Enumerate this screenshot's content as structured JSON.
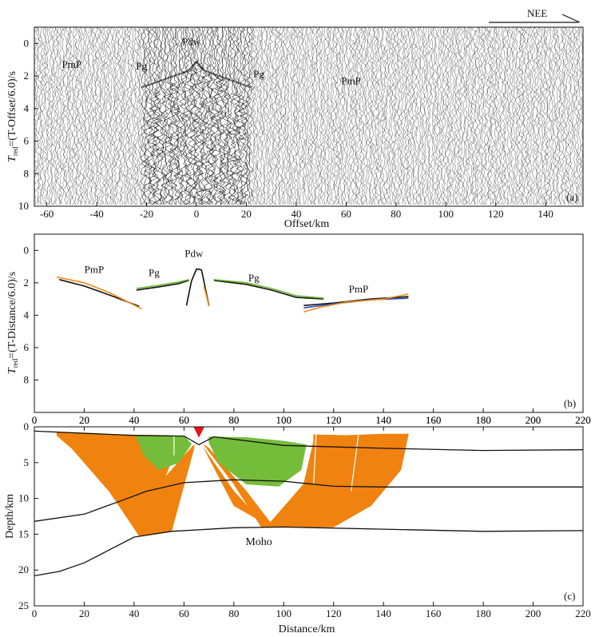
{
  "direction_label": "NEE",
  "chart_data": [
    {
      "id": "a",
      "type": "seismic_record_section",
      "panel_label": "(a)",
      "xlabel": "Offset/km",
      "ylabel_main": "T",
      "ylabel_sub": "red",
      "ylabel_rest": "=(T-Offset/6.0)/s",
      "xlim": [
        -65,
        155
      ],
      "ylim": [
        -1,
        10
      ],
      "xticks": [
        -60,
        -40,
        -20,
        0,
        20,
        40,
        60,
        80,
        100,
        120,
        140
      ],
      "yticks": [
        0,
        2,
        4,
        6,
        8,
        10
      ],
      "phase_labels": [
        {
          "text": "PmP",
          "x": -50,
          "t": 1.5
        },
        {
          "text": "Pg",
          "x": -22,
          "t": 1.6
        },
        {
          "text": "Pdw",
          "x": -2,
          "t": 0.1
        },
        {
          "text": "Pg",
          "x": 25,
          "t": 2.1
        },
        {
          "text": "PmP",
          "x": 62,
          "t": 2.5
        }
      ]
    },
    {
      "id": "b",
      "type": "line",
      "panel_label": "(b)",
      "xlabel": "",
      "ylabel_main": "T",
      "ylabel_sub": "red",
      "ylabel_rest": "=(T-Distance/6.0)/s",
      "xlim": [
        0,
        220
      ],
      "ylim": [
        -1,
        10
      ],
      "xticks": [
        0,
        20,
        40,
        60,
        80,
        100,
        120,
        140,
        160,
        180,
        200,
        220
      ],
      "yticks": [
        0,
        2,
        4,
        6,
        8
      ],
      "phase_labels": [
        {
          "text": "PmP",
          "x": 24,
          "t": 1.4
        },
        {
          "text": "Pg",
          "x": 48,
          "t": 1.6
        },
        {
          "text": "Pdw",
          "x": 64,
          "t": 0.4
        },
        {
          "text": "Pg",
          "x": 88,
          "t": 1.9
        },
        {
          "text": "PmP",
          "x": 130,
          "t": 2.6
        }
      ],
      "series": [
        {
          "color": "#111111",
          "points": [
            [
              10,
              1.8
            ],
            [
              20,
              2.2
            ],
            [
              30,
              2.75
            ],
            [
              42,
              3.45
            ]
          ]
        },
        {
          "color": "#f08c14",
          "points": [
            [
              9,
              1.65
            ],
            [
              20,
              2.0
            ],
            [
              30,
              2.6
            ],
            [
              43,
              3.6
            ]
          ]
        },
        {
          "color": "#111111",
          "points": [
            [
              41,
              2.45
            ],
            [
              50,
              2.25
            ],
            [
              58,
              2.05
            ],
            [
              62,
              1.85
            ]
          ]
        },
        {
          "color": "#6ab830",
          "points": [
            [
              41,
              2.35
            ],
            [
              50,
              2.15
            ],
            [
              58,
              1.95
            ],
            [
              62,
              1.8
            ]
          ]
        },
        {
          "color": "#111111",
          "points": [
            [
              61,
              3.4
            ],
            [
              63,
              1.9
            ],
            [
              65,
              1.15
            ],
            [
              67,
              1.2
            ],
            [
              68,
              1.9
            ],
            [
              70,
              3.4
            ]
          ]
        },
        {
          "color": "#f08c14",
          "points": [
            [
              68,
              2.2
            ],
            [
              69,
              2.8
            ],
            [
              70,
              3.45
            ]
          ]
        },
        {
          "color": "#111111",
          "points": [
            [
              72,
              1.85
            ],
            [
              85,
              2.1
            ],
            [
              95,
              2.45
            ],
            [
              105,
              2.9
            ],
            [
              116,
              3.0
            ]
          ]
        },
        {
          "color": "#6ab830",
          "points": [
            [
              72,
              1.8
            ],
            [
              85,
              2.0
            ],
            [
              95,
              2.35
            ],
            [
              105,
              2.8
            ],
            [
              116,
              2.95
            ]
          ]
        },
        {
          "color": "#111111",
          "points": [
            [
              108,
              3.4
            ],
            [
              120,
              3.25
            ],
            [
              135,
              3.0
            ],
            [
              150,
              2.85
            ]
          ]
        },
        {
          "color": "#2b4bb4",
          "points": [
            [
              108,
              3.55
            ],
            [
              120,
              3.3
            ],
            [
              135,
              3.05
            ],
            [
              150,
              2.95
            ]
          ]
        },
        {
          "color": "#f08c14",
          "points": [
            [
              108,
              3.8
            ],
            [
              115,
              3.5
            ],
            [
              125,
              3.2
            ],
            [
              140,
              3.0
            ],
            [
              150,
              2.7
            ]
          ]
        }
      ]
    },
    {
      "id": "c",
      "type": "ray_diagram",
      "panel_label": "(c)",
      "xlabel": "Distance/km",
      "ylabel": "Depth/km",
      "xlim": [
        0,
        220
      ],
      "ylim": [
        0,
        25
      ],
      "xticks": [
        0,
        20,
        40,
        60,
        80,
        100,
        120,
        140,
        160,
        180,
        200,
        220
      ],
      "yticks": [
        0,
        5,
        10,
        15,
        20,
        25
      ],
      "interface_label": {
        "text": "Moho",
        "x": 90,
        "y": 16.5
      },
      "source": {
        "x": 66,
        "y": 0.6,
        "color": "#e8101a"
      },
      "colors": {
        "pmp": "#f0820f",
        "pg": "#74bd3a",
        "line": "#111111"
      },
      "interfaces": [
        [
          [
            0,
            0.6
          ],
          [
            40,
            1.2
          ],
          [
            60,
            1.3
          ],
          [
            66,
            2.5
          ],
          [
            72,
            1.4
          ],
          [
            100,
            2.6
          ],
          [
            140,
            3.0
          ],
          [
            180,
            3.3
          ],
          [
            220,
            3.2
          ]
        ],
        [
          [
            0,
            13.2
          ],
          [
            20,
            12.2
          ],
          [
            35,
            10.3
          ],
          [
            45,
            9.0
          ],
          [
            60,
            7.8
          ],
          [
            80,
            7.4
          ],
          [
            100,
            7.6
          ],
          [
            120,
            8.3
          ],
          [
            140,
            8.4
          ],
          [
            180,
            8.4
          ],
          [
            220,
            8.4
          ]
        ],
        [
          [
            0,
            20.8
          ],
          [
            10,
            20.2
          ],
          [
            20,
            19.0
          ],
          [
            30,
            17.2
          ],
          [
            40,
            15.4
          ],
          [
            55,
            14.6
          ],
          [
            80,
            14.1
          ],
          [
            100,
            14.0
          ],
          [
            140,
            14.3
          ],
          [
            180,
            14.6
          ],
          [
            220,
            14.5
          ]
        ]
      ]
    }
  ]
}
